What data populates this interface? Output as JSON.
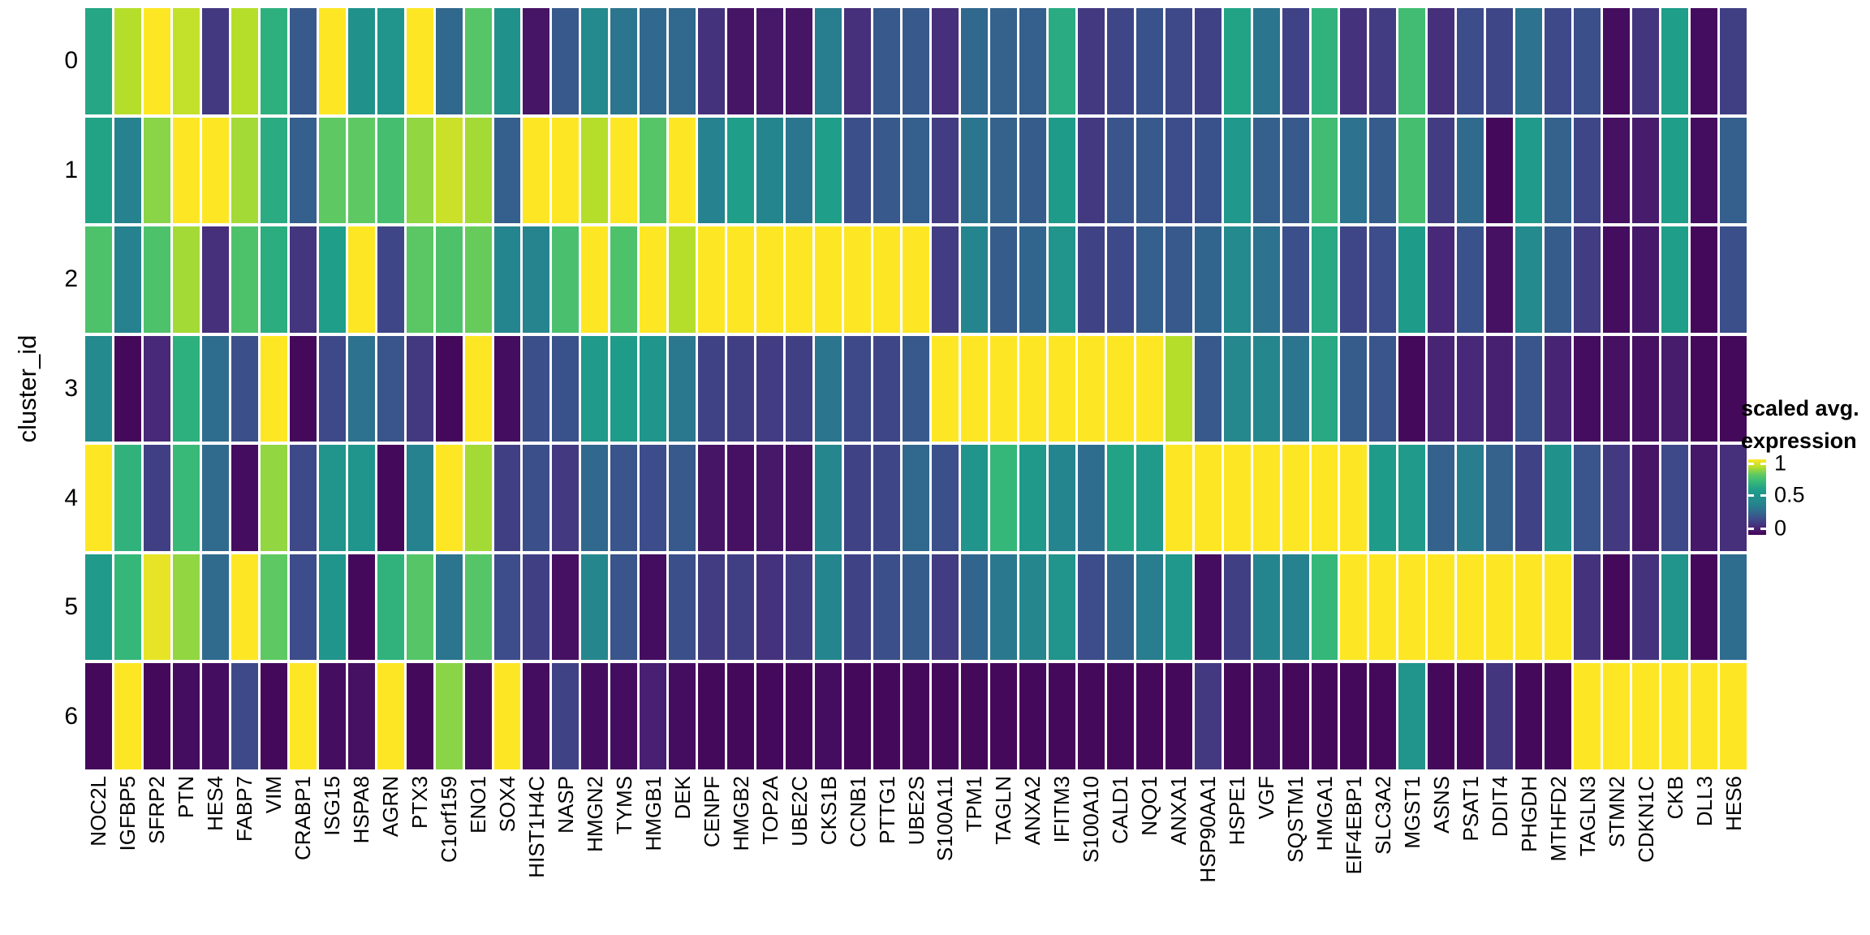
{
  "y_axis": {
    "title": "cluster_id"
  },
  "legend": {
    "title_line1": "scaled avg.",
    "title_line2": "expression",
    "ticks": [
      {
        "label": "1",
        "y": 571
      },
      {
        "label": "0.5",
        "y": 610
      },
      {
        "label": "0",
        "y": 651
      }
    ]
  },
  "colors": {
    "background": "#ffffff",
    "viridis_stops": [
      "#440154",
      "#482878",
      "#3e4989",
      "#31688e",
      "#26828e",
      "#21918c",
      "#1f9e89",
      "#35b779",
      "#5ec962",
      "#b5de2b",
      "#fde725"
    ]
  },
  "chart_data": {
    "type": "heatmap",
    "title": "",
    "xlabel": "",
    "ylabel": "cluster_id",
    "legend_title": "scaled avg. expression",
    "colorscale": "viridis",
    "value_range": [
      0,
      1
    ],
    "x_categories": [
      "NOC2L",
      "IGFBP5",
      "SFRP2",
      "PTN",
      "HES4",
      "FABP7",
      "VIM",
      "CRABP1",
      "ISG15",
      "HSPA8",
      "AGRN",
      "PTX3",
      "C1orf159",
      "ENO1",
      "SOX4",
      "HIST1H4C",
      "NASP",
      "HMGN2",
      "TYMS",
      "HMGB1",
      "DEK",
      "CENPF",
      "HMGB2",
      "TOP2A",
      "UBE2C",
      "CKS1B",
      "CCNB1",
      "PTTG1",
      "UBE2S",
      "S100A11",
      "TPM1",
      "TAGLN",
      "ANXA2",
      "IFITM3",
      "S100A10",
      "CALD1",
      "NQO1",
      "ANXA1",
      "HSP90AA1",
      "HSPE1",
      "VGF",
      "SQSTM1",
      "HMGA1",
      "EIF4EBP1",
      "SLC3A2",
      "MGST1",
      "ASNS",
      "PSAT1",
      "DDIT4",
      "PHGDH",
      "MTHFD2",
      "TAGLN3",
      "STMN2",
      "CDKN1C",
      "CKB",
      "DLL3",
      "HES6"
    ],
    "y_categories": [
      "0",
      "1",
      "2",
      "3",
      "4",
      "5",
      "6"
    ],
    "series": [
      {
        "name": "0",
        "values": [
          0.63,
          0.9,
          1.0,
          0.92,
          0.15,
          0.9,
          0.67,
          0.25,
          1.0,
          0.5,
          0.52,
          1.0,
          0.3,
          0.78,
          0.5,
          0.05,
          0.25,
          0.45,
          0.35,
          0.3,
          0.3,
          0.13,
          0.05,
          0.06,
          0.05,
          0.38,
          0.12,
          0.25,
          0.25,
          0.12,
          0.3,
          0.28,
          0.27,
          0.65,
          0.15,
          0.19,
          0.23,
          0.2,
          0.18,
          0.62,
          0.35,
          0.18,
          0.68,
          0.13,
          0.16,
          0.73,
          0.12,
          0.21,
          0.19,
          0.34,
          0.2,
          0.22,
          0.03,
          0.14,
          0.6,
          0.03,
          0.17
        ]
      },
      {
        "name": "1",
        "values": [
          0.62,
          0.4,
          0.85,
          1.0,
          1.0,
          0.88,
          0.65,
          0.27,
          0.8,
          0.8,
          0.74,
          0.86,
          0.93,
          0.88,
          0.27,
          1.0,
          1.0,
          0.9,
          1.0,
          0.78,
          1.0,
          0.4,
          0.6,
          0.42,
          0.35,
          0.6,
          0.22,
          0.25,
          0.27,
          0.16,
          0.35,
          0.28,
          0.26,
          0.58,
          0.15,
          0.24,
          0.25,
          0.21,
          0.23,
          0.55,
          0.27,
          0.25,
          0.73,
          0.34,
          0.26,
          0.74,
          0.16,
          0.31,
          0.02,
          0.57,
          0.28,
          0.19,
          0.04,
          0.07,
          0.6,
          0.03,
          0.27
        ]
      },
      {
        "name": "2",
        "values": [
          0.76,
          0.4,
          0.76,
          0.88,
          0.12,
          0.76,
          0.66,
          0.14,
          0.6,
          1.0,
          0.19,
          0.79,
          0.76,
          0.81,
          0.42,
          0.41,
          0.75,
          1.0,
          0.76,
          1.0,
          0.9,
          1.0,
          1.0,
          1.0,
          1.0,
          1.0,
          1.0,
          1.0,
          1.0,
          0.16,
          0.42,
          0.26,
          0.29,
          0.52,
          0.18,
          0.2,
          0.27,
          0.25,
          0.29,
          0.45,
          0.34,
          0.22,
          0.64,
          0.19,
          0.21,
          0.58,
          0.1,
          0.23,
          0.04,
          0.45,
          0.26,
          0.16,
          0.03,
          0.06,
          0.6,
          0.02,
          0.22
        ]
      },
      {
        "name": "3",
        "values": [
          0.45,
          0.02,
          0.1,
          0.67,
          0.32,
          0.22,
          1.0,
          0.02,
          0.2,
          0.34,
          0.24,
          0.15,
          0.02,
          1.0,
          0.03,
          0.22,
          0.23,
          0.57,
          0.58,
          0.53,
          0.36,
          0.18,
          0.17,
          0.16,
          0.17,
          0.35,
          0.2,
          0.19,
          0.25,
          1.0,
          1.0,
          1.0,
          1.0,
          1.0,
          1.0,
          1.0,
          1.0,
          0.9,
          0.25,
          0.44,
          0.43,
          0.35,
          0.64,
          0.26,
          0.24,
          0.02,
          0.09,
          0.1,
          0.08,
          0.24,
          0.09,
          0.03,
          0.04,
          0.04,
          0.07,
          0.02,
          0.02
        ]
      },
      {
        "name": "4",
        "values": [
          1.0,
          0.68,
          0.17,
          0.71,
          0.31,
          0.03,
          0.86,
          0.2,
          0.52,
          0.53,
          0.02,
          0.4,
          1.0,
          0.88,
          0.17,
          0.22,
          0.15,
          0.3,
          0.24,
          0.21,
          0.25,
          0.05,
          0.04,
          0.06,
          0.05,
          0.43,
          0.18,
          0.19,
          0.3,
          0.22,
          0.52,
          0.7,
          0.56,
          0.42,
          0.32,
          0.62,
          0.57,
          1.0,
          1.0,
          1.0,
          1.0,
          1.0,
          1.0,
          1.0,
          0.58,
          0.57,
          0.28,
          0.38,
          0.28,
          0.18,
          0.5,
          0.24,
          0.15,
          0.05,
          0.2,
          0.06,
          0.12
        ]
      },
      {
        "name": "5",
        "values": [
          0.57,
          0.7,
          0.97,
          0.86,
          0.31,
          1.0,
          0.8,
          0.21,
          0.53,
          0.02,
          0.68,
          0.78,
          0.35,
          0.78,
          0.21,
          0.17,
          0.04,
          0.43,
          0.24,
          0.03,
          0.22,
          0.16,
          0.17,
          0.13,
          0.16,
          0.42,
          0.18,
          0.22,
          0.26,
          0.16,
          0.29,
          0.36,
          0.43,
          0.52,
          0.21,
          0.28,
          0.38,
          0.55,
          0.03,
          0.17,
          0.42,
          0.4,
          0.7,
          1.0,
          1.0,
          1.0,
          1.0,
          1.0,
          1.0,
          1.0,
          1.0,
          0.13,
          0.02,
          0.13,
          0.52,
          0.02,
          0.32
        ]
      },
      {
        "name": "6",
        "values": [
          0.02,
          1.0,
          0.02,
          0.03,
          0.03,
          0.2,
          0.02,
          1.0,
          0.03,
          0.04,
          1.0,
          0.02,
          0.85,
          0.03,
          1.0,
          0.03,
          0.18,
          0.03,
          0.03,
          0.08,
          0.03,
          0.02,
          0.02,
          0.02,
          0.02,
          0.03,
          0.02,
          0.02,
          0.02,
          0.02,
          0.02,
          0.02,
          0.02,
          0.02,
          0.02,
          0.02,
          0.02,
          0.02,
          0.15,
          0.02,
          0.03,
          0.02,
          0.02,
          0.02,
          0.02,
          0.52,
          0.02,
          0.02,
          0.14,
          0.02,
          0.02,
          1.0,
          1.0,
          1.0,
          1.0,
          1.0,
          1.0
        ]
      }
    ]
  }
}
